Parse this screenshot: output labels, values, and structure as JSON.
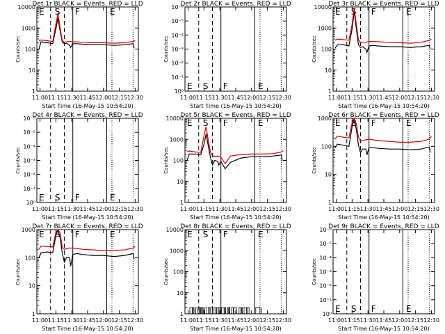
{
  "chart_data": [
    {
      "type": "line",
      "title": "Det 1r BLACK = Events, RED = LLD",
      "ylabel": "Counts/sec",
      "xlabel": "Start Time (16-May-15 10:54:20)",
      "x_ticks": [
        "11:00",
        "11:15",
        "11:30",
        "11:45",
        "12:00",
        "12:15",
        "12:30"
      ],
      "y_scale": "log",
      "y_ticks": [
        "1",
        "10",
        "100",
        "1000",
        "10000"
      ],
      "ylim": [
        1,
        10000
      ],
      "markers": [
        {
          "label": "E"
        },
        {
          "label": "S"
        },
        {
          "label": "F"
        },
        {
          "label": "E"
        }
      ],
      "series": [
        {
          "name": "Events",
          "color": "#000000",
          "x": [
            "10:59",
            "11:01",
            "11:07",
            "11:12",
            "11:15",
            "11:17",
            "11:19",
            "11:21",
            "11:23",
            "11:25",
            "11:28",
            "11:29",
            "11:31",
            "11:35",
            "11:40",
            "11:50",
            "12:00",
            "12:10",
            "12:20",
            "12:28",
            "12:29"
          ],
          "y": [
            100,
            220,
            200,
            180,
            900,
            3000,
            700,
            220,
            180,
            190,
            150,
            120,
            180,
            180,
            170,
            160,
            160,
            150,
            160,
            180,
            110
          ]
        },
        {
          "name": "LLD",
          "color": "#cc0000",
          "x": [
            "10:59",
            "11:01",
            "11:07",
            "11:12",
            "11:15",
            "11:17",
            "11:19",
            "11:21",
            "11:23",
            "11:25",
            "11:28",
            "11:31",
            "11:35",
            "11:40",
            "11:50",
            "12:00",
            "12:10",
            "12:20",
            "12:28",
            "12:30"
          ],
          "y": [
            250,
            270,
            250,
            230,
            1500,
            5000,
            1000,
            260,
            210,
            220,
            230,
            220,
            220,
            210,
            200,
            200,
            190,
            200,
            230,
            250
          ]
        }
      ]
    },
    {
      "type": "line",
      "title": "Det 2r BLACK = Events, RED = LLD",
      "ylabel": "Counts/sec",
      "xlabel": "Start Time (16-May-15 10:54:20)",
      "x_ticks": [
        "11:00",
        "11:15",
        "11:30",
        "11:45",
        "12:00",
        "12:15",
        "12:30"
      ],
      "y_scale": "log",
      "y_ticks": [
        "10⁰",
        "10⁻¹",
        "10⁻²",
        "10⁻³",
        "10⁻⁴",
        "10⁻⁵",
        "10⁻⁶"
      ],
      "markers": [
        {
          "label": "E"
        },
        {
          "label": "S"
        },
        {
          "label": "F"
        },
        {
          "label": "E"
        }
      ],
      "series": []
    },
    {
      "type": "line",
      "title": "Det 3r BLACK = Events, RED = LLD",
      "ylabel": "Counts/sec",
      "xlabel": "Start Time (16-May-15 10:54:20)",
      "x_ticks": [
        "11:00",
        "11:15",
        "11:30",
        "11:45",
        "12:00",
        "12:15",
        "12:30"
      ],
      "y_scale": "log",
      "y_ticks": [
        "1",
        "10",
        "100",
        "1000",
        "10000"
      ],
      "ylim": [
        1,
        10000
      ],
      "markers": [
        {
          "label": "E"
        },
        {
          "label": "S"
        },
        {
          "label": "F"
        },
        {
          "label": "E"
        }
      ],
      "series": [
        {
          "name": "Events",
          "color": "#000000",
          "x": [
            "10:59",
            "11:01",
            "11:07",
            "11:12",
            "11:15",
            "11:17",
            "11:19",
            "11:21",
            "11:23",
            "11:25",
            "11:28",
            "11:29",
            "11:31",
            "11:35",
            "11:40",
            "11:50",
            "12:00",
            "12:10",
            "12:20",
            "12:28",
            "12:29"
          ],
          "y": [
            110,
            160,
            160,
            140,
            900,
            6000,
            900,
            160,
            120,
            130,
            100,
            70,
            140,
            150,
            140,
            130,
            130,
            120,
            130,
            150,
            100
          ]
        },
        {
          "name": "LLD",
          "color": "#cc0000",
          "x": [
            "10:59",
            "11:01",
            "11:07",
            "11:12",
            "11:15",
            "11:17",
            "11:19",
            "11:21",
            "11:23",
            "11:25",
            "11:28",
            "11:31",
            "11:35",
            "11:40",
            "11:50",
            "12:00",
            "12:10",
            "12:20",
            "12:28",
            "12:30"
          ],
          "y": [
            260,
            300,
            280,
            260,
            1500,
            9000,
            1500,
            280,
            200,
            210,
            210,
            230,
            230,
            220,
            210,
            200,
            190,
            210,
            260,
            300
          ]
        }
      ]
    },
    {
      "type": "line",
      "title": "Det 4r BLACK = Events, RED = LLD",
      "ylabel": "Counts/sec",
      "xlabel": "Start Time (16-May-15 10:54:20)",
      "x_ticks": [
        "11:00",
        "11:15",
        "11:30",
        "11:45",
        "12:00",
        "12:15",
        "12:30"
      ],
      "y_scale": "log",
      "y_ticks": [
        "10⁰",
        "10⁻¹",
        "10⁻²",
        "10⁻³",
        "10⁻⁴",
        "10⁻⁵",
        "10⁻⁶"
      ],
      "markers": [
        {
          "label": "E"
        },
        {
          "label": "S"
        },
        {
          "label": "F"
        },
        {
          "label": "E"
        }
      ],
      "series": []
    },
    {
      "type": "line",
      "title": "Det 5r BLACK = Events, RED = LLD",
      "ylabel": "Counts/sec",
      "xlabel": "Start Time (16-May-15 10:54:20)",
      "x_ticks": [
        "11:00",
        "11:15",
        "11:30",
        "11:45",
        "12:00",
        "12:15",
        "12:30"
      ],
      "y_scale": "log",
      "y_ticks": [
        "1",
        "10",
        "100",
        "1000",
        "10000"
      ],
      "ylim": [
        1,
        10000
      ],
      "markers": [
        {
          "label": "E"
        },
        {
          "label": "S"
        },
        {
          "label": "F"
        },
        {
          "label": "E"
        }
      ],
      "series": [
        {
          "name": "Events",
          "color": "#000000",
          "x": [
            "10:59",
            "11:01",
            "11:07",
            "11:12",
            "11:15",
            "11:17",
            "11:19",
            "11:21",
            "11:23",
            "11:25",
            "11:28",
            "11:29",
            "11:31",
            "11:35",
            "11:40",
            "11:50",
            "12:00",
            "12:10",
            "12:20",
            "12:28",
            "12:29"
          ],
          "y": [
            100,
            200,
            200,
            190,
            600,
            1800,
            500,
            150,
            60,
            100,
            90,
            60,
            90,
            40,
            80,
            130,
            150,
            150,
            160,
            180,
            100
          ]
        },
        {
          "name": "LLD",
          "color": "#cc0000",
          "x": [
            "10:59",
            "11:01",
            "11:07",
            "11:12",
            "11:15",
            "11:17",
            "11:19",
            "11:21",
            "11:23",
            "11:25",
            "11:28",
            "11:31",
            "11:35",
            "11:40",
            "11:50",
            "12:00",
            "12:10",
            "12:20",
            "12:28",
            "12:30"
          ],
          "y": [
            260,
            280,
            250,
            240,
            1500,
            4000,
            900,
            260,
            170,
            150,
            160,
            140,
            70,
            160,
            190,
            200,
            200,
            210,
            250,
            290
          ]
        }
      ]
    },
    {
      "type": "line",
      "title": "Det 6r BLACK = Events, RED = LLD",
      "ylabel": "Counts/sec",
      "xlabel": "Start Time (16-May-15 10:54:20)",
      "x_ticks": [
        "11:00",
        "11:15",
        "11:30",
        "11:45",
        "12:00",
        "12:15",
        "12:30"
      ],
      "y_scale": "log",
      "y_ticks": [
        "1",
        "10",
        "100",
        "1000"
      ],
      "ylim": [
        1,
        1000
      ],
      "markers": [
        {
          "label": "E"
        },
        {
          "label": "S"
        },
        {
          "label": "F"
        },
        {
          "label": "E"
        }
      ],
      "series": [
        {
          "name": "Events",
          "color": "#000000",
          "x": [
            "10:59",
            "11:01",
            "11:07",
            "11:12",
            "11:15",
            "11:17",
            "11:19",
            "11:21",
            "11:23",
            "11:25",
            "11:28",
            "11:29",
            "11:31",
            "11:35",
            "11:40",
            "11:50",
            "12:00",
            "12:10",
            "12:20",
            "12:28",
            "12:29"
          ],
          "y": [
            90,
            120,
            110,
            100,
            500,
            900,
            400,
            110,
            60,
            80,
            80,
            50,
            90,
            90,
            85,
            80,
            80,
            75,
            80,
            95,
            60
          ]
        },
        {
          "name": "LLD",
          "color": "#cc0000",
          "x": [
            "10:59",
            "11:01",
            "11:07",
            "11:12",
            "11:15",
            "11:17",
            "11:19",
            "11:21",
            "11:23",
            "11:25",
            "11:28",
            "11:31",
            "11:35",
            "11:40",
            "11:50",
            "12:00",
            "12:10",
            "12:20",
            "12:28",
            "12:30"
          ],
          "y": [
            180,
            230,
            210,
            200,
            700,
            1000,
            650,
            210,
            150,
            160,
            170,
            180,
            170,
            160,
            150,
            140,
            140,
            150,
            180,
            230
          ]
        }
      ]
    },
    {
      "type": "line",
      "title": "Det 7r BLACK = Events, RED = LLD",
      "ylabel": "Counts/sec",
      "xlabel": "Start Time (16-May-15 10:54:20)",
      "x_ticks": [
        "11:00",
        "11:15",
        "11:30",
        "11:45",
        "12:00",
        "12:15",
        "12:30"
      ],
      "y_scale": "log",
      "y_ticks": [
        "1",
        "10",
        "100",
        "1000"
      ],
      "ylim": [
        1,
        1000
      ],
      "markers": [
        {
          "label": "E"
        },
        {
          "label": "S"
        },
        {
          "label": "F"
        },
        {
          "label": "E"
        }
      ],
      "series": [
        {
          "name": "Events",
          "color": "#000000",
          "x": [
            "10:59",
            "11:01",
            "11:07",
            "11:12",
            "11:15",
            "11:17",
            "11:19",
            "11:21",
            "11:23",
            "11:25",
            "11:28",
            "11:29",
            "11:31",
            "11:35",
            "11:40",
            "11:50",
            "12:00",
            "12:10",
            "12:20",
            "12:28",
            "12:29"
          ],
          "y": [
            100,
            150,
            160,
            150,
            600,
            1000,
            500,
            150,
            70,
            100,
            100,
            50,
            130,
            140,
            130,
            120,
            120,
            110,
            120,
            140,
            90
          ]
        },
        {
          "name": "LLD",
          "color": "#cc0000",
          "x": [
            "10:59",
            "11:01",
            "11:07",
            "11:12",
            "11:15",
            "11:17",
            "11:19",
            "11:21",
            "11:23",
            "11:25",
            "11:28",
            "11:31",
            "11:35",
            "11:40",
            "11:50",
            "12:00",
            "12:10",
            "12:20",
            "12:28",
            "12:30"
          ],
          "y": [
            200,
            260,
            250,
            240,
            800,
            1000,
            750,
            240,
            200,
            210,
            220,
            220,
            210,
            200,
            190,
            180,
            180,
            190,
            220,
            260
          ]
        }
      ]
    },
    {
      "type": "line",
      "title": "Det 8r BLACK = Events, RED = LLD",
      "ylabel": "Counts/sec",
      "xlabel": "Start Time (16-May-15 10:54:20)",
      "x_ticks": [
        "11:00",
        "11:15",
        "11:30",
        "11:45",
        "12:00",
        "12:15",
        "12:30"
      ],
      "y_scale": "log",
      "y_ticks": [
        "1",
        "10",
        "100",
        "1000",
        "10000"
      ],
      "ylim": [
        1,
        10000
      ],
      "markers": [
        {
          "label": "E"
        },
        {
          "label": "S"
        },
        {
          "label": "F"
        },
        {
          "label": "E"
        }
      ],
      "noise": {
        "from": "11:00",
        "to": "12:10",
        "levels": [
          1,
          2
        ]
      },
      "series": [
        {
          "name": "Events",
          "color": "#000000",
          "x": [],
          "y": []
        }
      ]
    },
    {
      "type": "line",
      "title": "Det 9r BLACK = Events, RED = LLD",
      "ylabel": "Counts/sec",
      "xlabel": "Start Time (16-May-15 10:54:20)",
      "x_ticks": [
        "11:00",
        "11:15",
        "11:30",
        "11:45",
        "12:00",
        "12:15",
        "12:30"
      ],
      "y_scale": "log",
      "y_ticks": [
        "10⁰",
        "10⁻¹",
        "10⁻²",
        "10⁻³",
        "10⁻⁴",
        "10⁻⁵",
        "10⁻⁶"
      ],
      "markers": [
        {
          "label": "E"
        },
        {
          "label": "S"
        },
        {
          "label": "F"
        },
        {
          "label": "E"
        }
      ],
      "series": []
    }
  ]
}
